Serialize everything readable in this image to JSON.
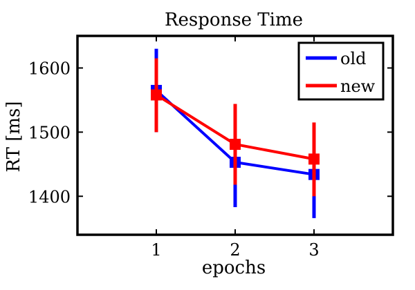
{
  "chart_data": {
    "type": "line",
    "title": "Response Time",
    "xlabel": "epochs",
    "ylabel": "RT [ms]",
    "x": [
      1,
      2,
      3
    ],
    "xlim": [
      0,
      4
    ],
    "ylim": [
      1340,
      1650
    ],
    "xticks": [
      1,
      2,
      3
    ],
    "xtick_labels": [
      "1",
      "2",
      "3"
    ],
    "yticks": [
      1400,
      1500,
      1600
    ],
    "ytick_labels": [
      "1400",
      "1500",
      "1600"
    ],
    "grid": false,
    "legend_position": "top-right",
    "series": [
      {
        "name": "old",
        "color": "#0000ff",
        "values": [
          1565,
          1453,
          1434
        ],
        "err_low": [
          1500,
          1383,
          1366
        ],
        "err_high": [
          1630,
          1522,
          1500
        ]
      },
      {
        "name": "new",
        "color": "#ff0000",
        "values": [
          1558,
          1481,
          1458
        ],
        "err_low": [
          1500,
          1418,
          1400
        ],
        "err_high": [
          1615,
          1544,
          1515
        ]
      }
    ]
  }
}
